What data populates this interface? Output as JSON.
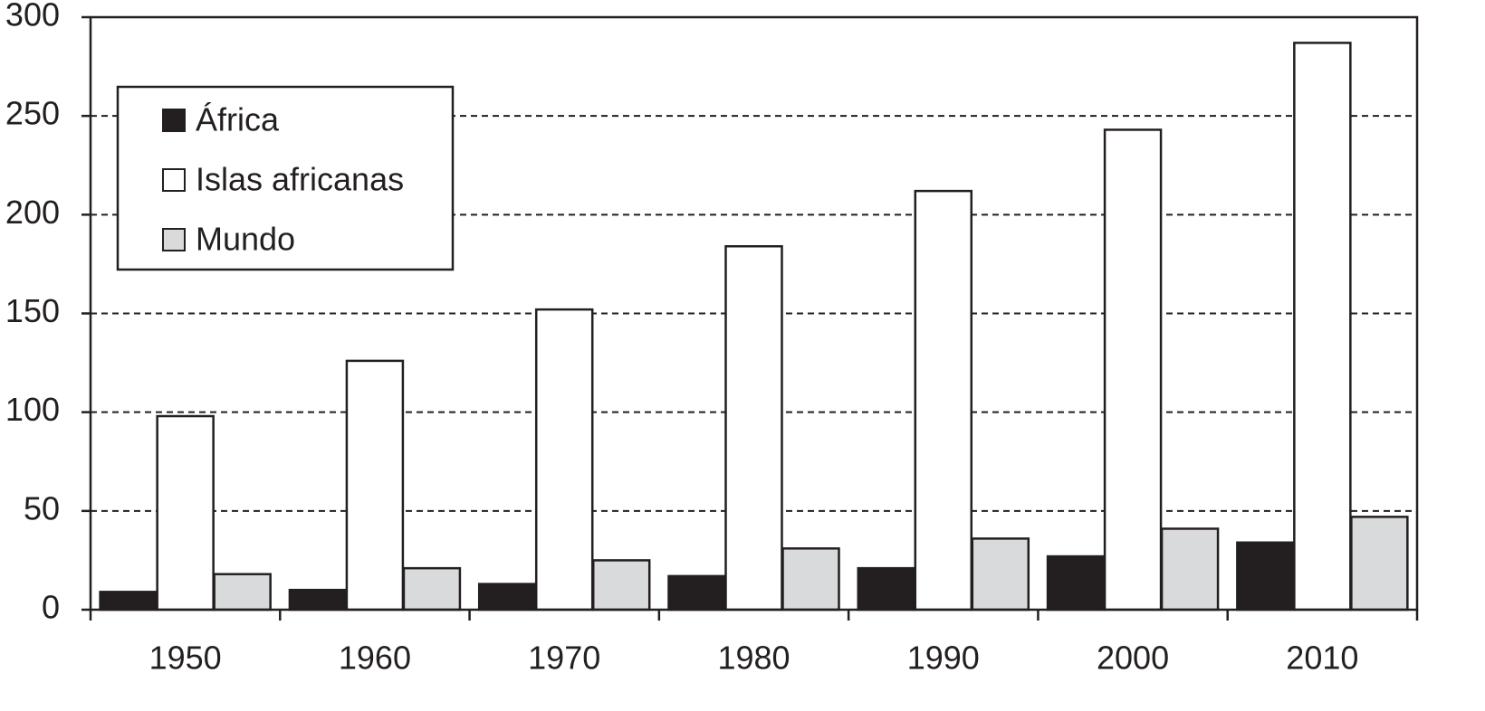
{
  "chart_data": {
    "type": "bar",
    "categories": [
      "1950",
      "1960",
      "1970",
      "1980",
      "1990",
      "2000",
      "2010"
    ],
    "series": [
      {
        "name": "África",
        "color": "#231f20",
        "values": [
          9,
          10,
          13,
          17,
          21,
          27,
          34
        ]
      },
      {
        "name": "Islas africanas",
        "color": "#ffffff",
        "values": [
          98,
          126,
          152,
          184,
          212,
          243,
          287
        ]
      },
      {
        "name": "Mundo",
        "color": "#d9dadb",
        "values": [
          18,
          21,
          25,
          31,
          36,
          41,
          47
        ]
      }
    ],
    "ylim": [
      0,
      300
    ],
    "yticks": [
      0,
      50,
      100,
      150,
      200,
      250,
      300
    ],
    "grid": true,
    "legend": "upper left"
  }
}
